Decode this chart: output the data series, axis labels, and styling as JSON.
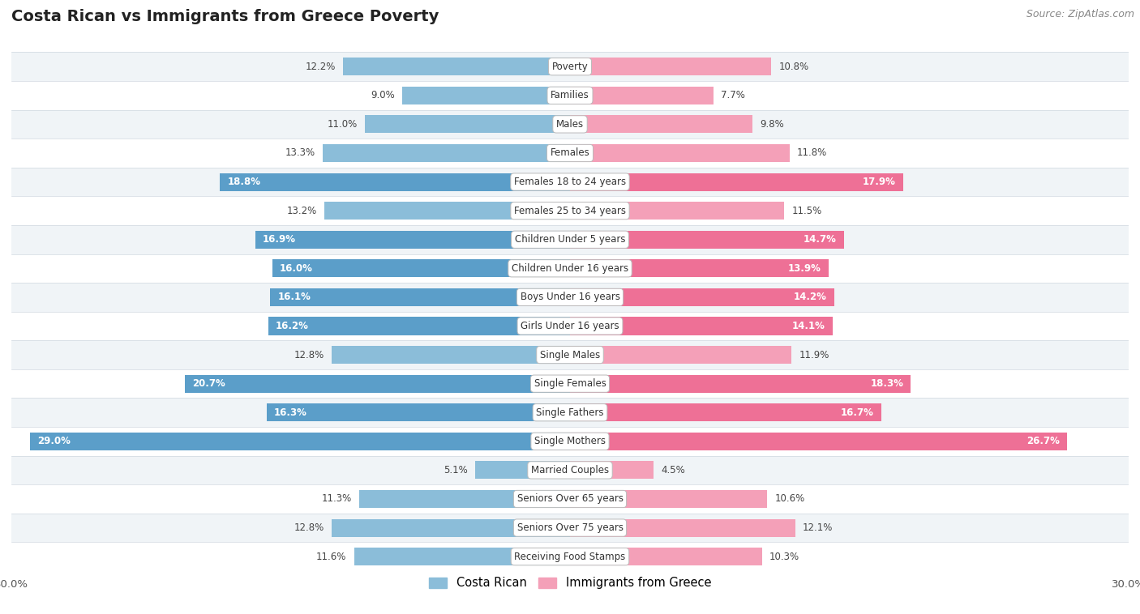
{
  "title": "Costa Rican vs Immigrants from Greece Poverty",
  "source": "Source: ZipAtlas.com",
  "categories": [
    "Poverty",
    "Families",
    "Males",
    "Females",
    "Females 18 to 24 years",
    "Females 25 to 34 years",
    "Children Under 5 years",
    "Children Under 16 years",
    "Boys Under 16 years",
    "Girls Under 16 years",
    "Single Males",
    "Single Females",
    "Single Fathers",
    "Single Mothers",
    "Married Couples",
    "Seniors Over 65 years",
    "Seniors Over 75 years",
    "Receiving Food Stamps"
  ],
  "costa_rican": [
    12.2,
    9.0,
    11.0,
    13.3,
    18.8,
    13.2,
    16.9,
    16.0,
    16.1,
    16.2,
    12.8,
    20.7,
    16.3,
    29.0,
    5.1,
    11.3,
    12.8,
    11.6
  ],
  "immigrants_greece": [
    10.8,
    7.7,
    9.8,
    11.8,
    17.9,
    11.5,
    14.7,
    13.9,
    14.2,
    14.1,
    11.9,
    18.3,
    16.7,
    26.7,
    4.5,
    10.6,
    12.1,
    10.3
  ],
  "blue_color": "#8bbdd9",
  "pink_color": "#f4a0b8",
  "blue_highlight": "#5b9ec9",
  "pink_highlight": "#ee7096",
  "bg_row_odd": "#f0f4f7",
  "bg_row_even": "#ffffff",
  "axis_max": 30.0,
  "legend_blue": "Costa Rican",
  "legend_pink": "Immigrants from Greece",
  "inside_label_threshold_cr": 14.5,
  "inside_label_threshold_ig": 13.0
}
